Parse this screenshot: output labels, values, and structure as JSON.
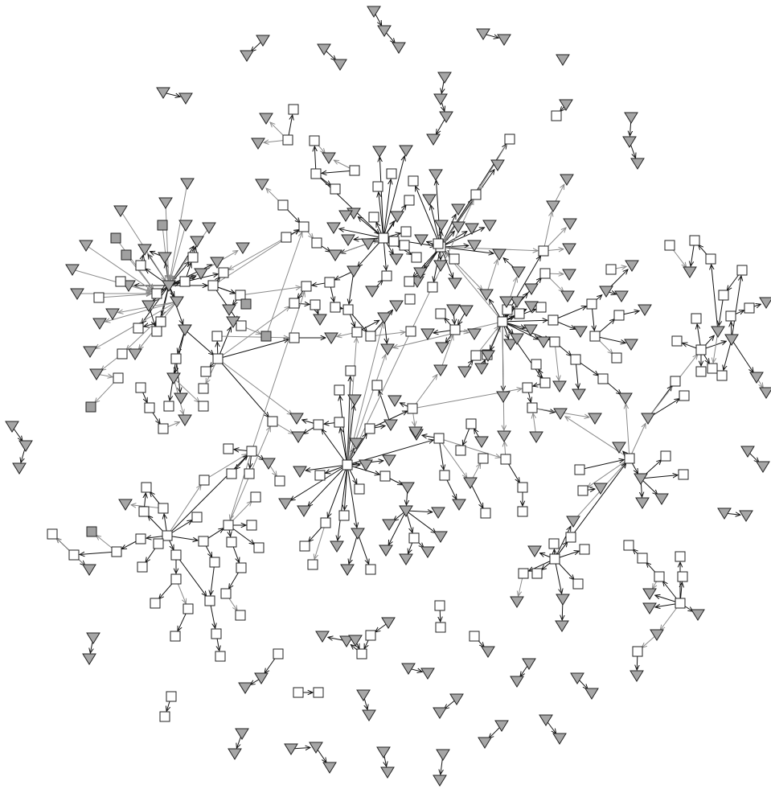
{
  "diagram": {
    "kind": "directed-network",
    "node_shapes": {
      "square": {
        "fill": "#ffffff",
        "stroke": "#222222"
      },
      "square_filled": {
        "fill": "#a0a0a0",
        "stroke": "#222222"
      },
      "triangle": {
        "fill": "#a6a6a6",
        "stroke": "#222222"
      }
    },
    "edge_colors": {
      "dark": "#111111",
      "light": "#8a8a8a"
    }
  }
}
